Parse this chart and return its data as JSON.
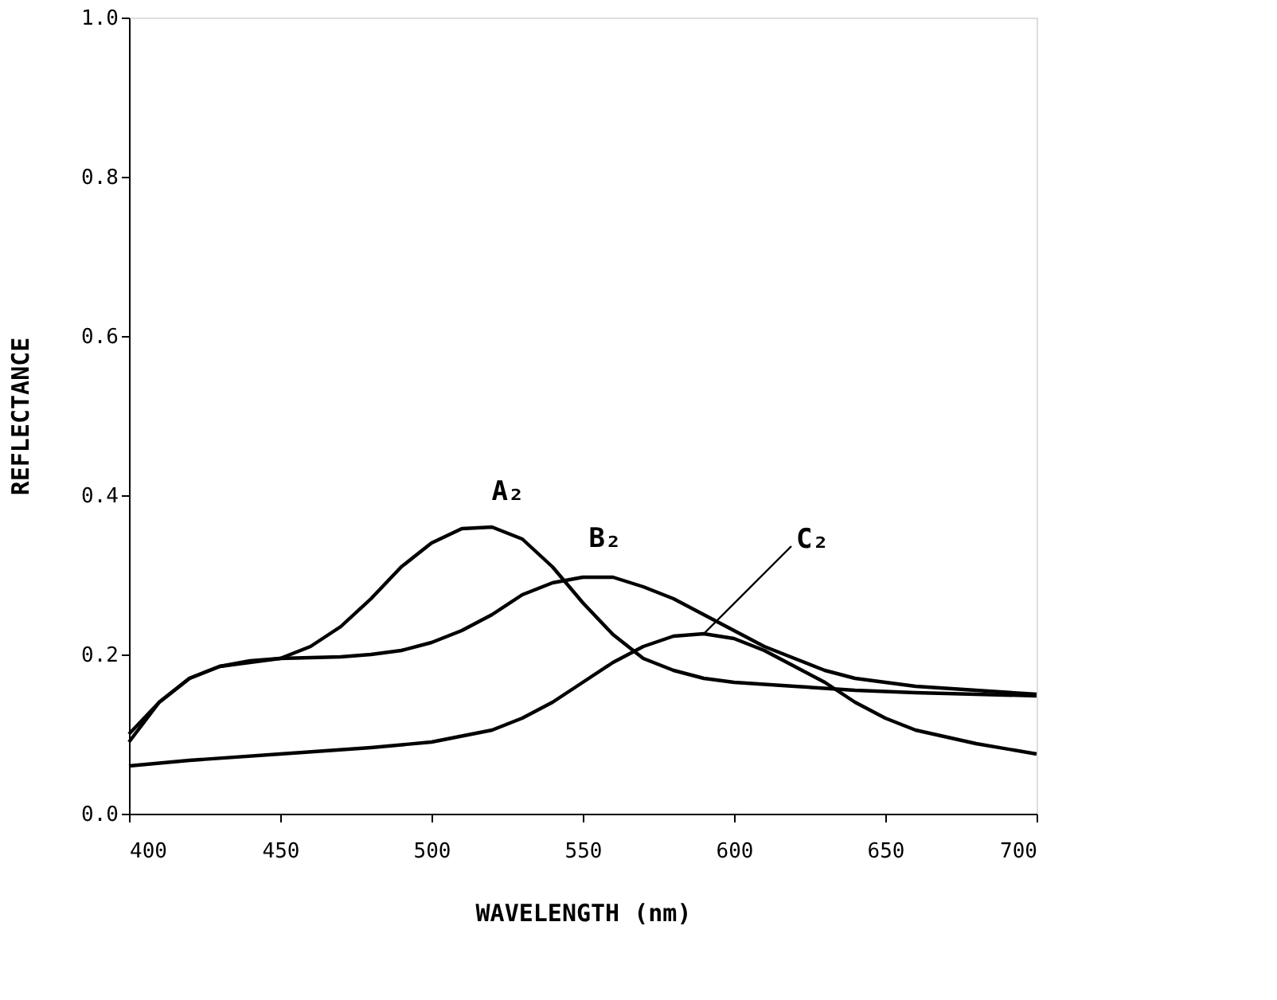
{
  "chart_data": {
    "type": "line",
    "xlabel": "WAVELENGTH  (nm)",
    "ylabel": "REFLECTANCE",
    "xlim": [
      400,
      700
    ],
    "xticks": [
      400,
      450,
      500,
      550,
      600,
      650,
      700
    ],
    "ylim": [
      0,
      1.0
    ],
    "yticks": [
      {
        "value": 0,
        "label": "0.0"
      },
      {
        "value": 0.2,
        "label": "0.2"
      },
      {
        "value": 0.4,
        "label": "0.4"
      },
      {
        "value": 0.6,
        "label": "0.6"
      },
      {
        "value": 0.8,
        "label": "0.8"
      },
      {
        "value": 1.0,
        "label": "1.0"
      }
    ],
    "grid": false,
    "legend": false,
    "marker": "none",
    "line_style": "solid",
    "series": [
      {
        "name": "A₂",
        "color": "#000000",
        "x": [
          400,
          410,
          420,
          430,
          440,
          450,
          460,
          470,
          480,
          490,
          500,
          510,
          520,
          530,
          540,
          550,
          560,
          570,
          580,
          590,
          600,
          620,
          640,
          660,
          680,
          700
        ],
        "values": [
          0.09,
          0.14,
          0.17,
          0.185,
          0.19,
          0.195,
          0.21,
          0.235,
          0.27,
          0.31,
          0.34,
          0.358,
          0.36,
          0.345,
          0.31,
          0.265,
          0.225,
          0.195,
          0.18,
          0.17,
          0.165,
          0.16,
          0.155,
          0.152,
          0.15,
          0.148
        ]
      },
      {
        "name": "B₂",
        "color": "#000000",
        "x": [
          400,
          410,
          420,
          430,
          440,
          450,
          470,
          480,
          490,
          500,
          510,
          520,
          530,
          540,
          550,
          560,
          570,
          580,
          590,
          600,
          610,
          620,
          630,
          640,
          660,
          680,
          700
        ],
        "values": [
          0.1,
          0.14,
          0.17,
          0.185,
          0.192,
          0.195,
          0.197,
          0.2,
          0.205,
          0.215,
          0.23,
          0.25,
          0.275,
          0.29,
          0.297,
          0.297,
          0.285,
          0.27,
          0.25,
          0.23,
          0.21,
          0.195,
          0.18,
          0.17,
          0.16,
          0.155,
          0.15
        ]
      },
      {
        "name": "C₂",
        "color": "#000000",
        "x": [
          400,
          420,
          450,
          480,
          500,
          520,
          530,
          540,
          550,
          560,
          570,
          580,
          590,
          600,
          610,
          620,
          630,
          640,
          650,
          660,
          680,
          700
        ],
        "values": [
          0.06,
          0.067,
          0.075,
          0.083,
          0.09,
          0.105,
          0.12,
          0.14,
          0.165,
          0.19,
          0.21,
          0.223,
          0.226,
          0.22,
          0.205,
          0.185,
          0.165,
          0.14,
          0.12,
          0.105,
          0.088,
          0.075
        ]
      }
    ]
  }
}
